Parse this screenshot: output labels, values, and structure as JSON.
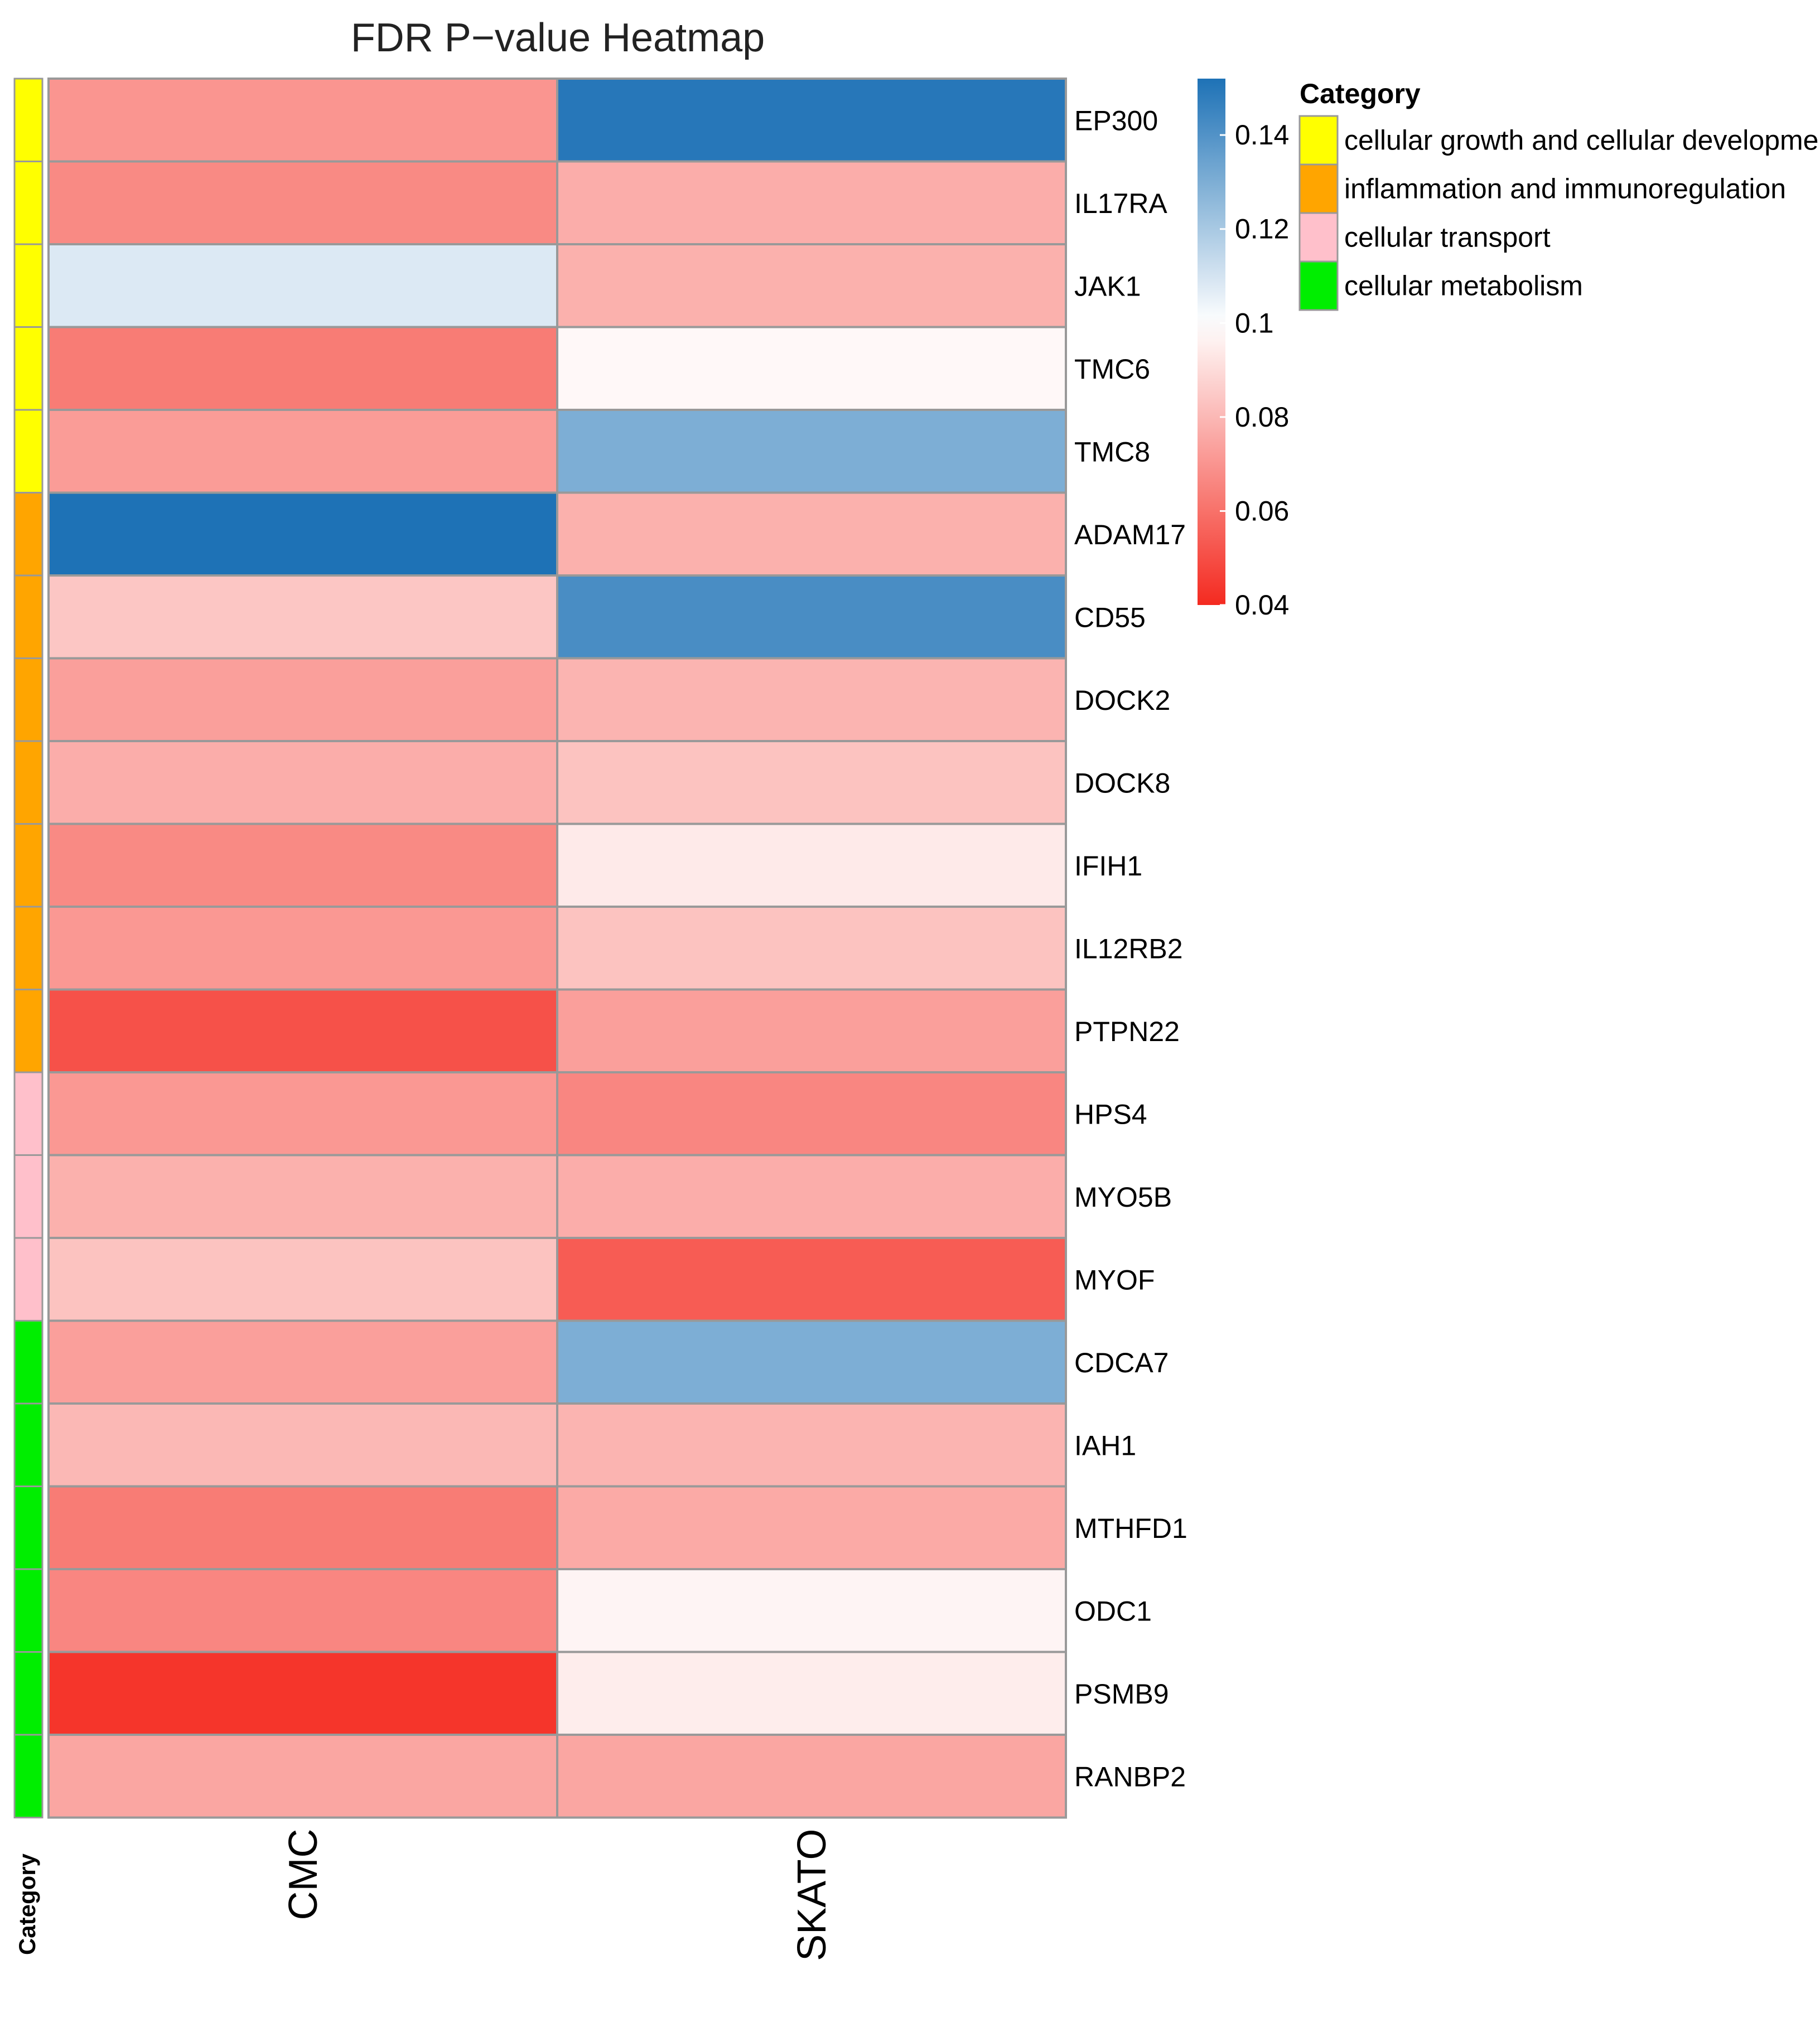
{
  "chart_data": {
    "type": "heatmap",
    "title": "FDR P−value Heatmap",
    "columns": [
      "CMC",
      "SKATO"
    ],
    "rows": [
      "EP300",
      "IL17RA",
      "JAK1",
      "TMC6",
      "TMC8",
      "ADAM17",
      "CD55",
      "DOCK2",
      "DOCK8",
      "IFIH1",
      "IL12RB2",
      "PTPN22",
      "HPS4",
      "MYO5B",
      "MYOF",
      "CDCA7",
      "IAH1",
      "MTHFD1",
      "ODC1",
      "PSMB9",
      "RANBP2"
    ],
    "values": [
      [
        0.07,
        0.15
      ],
      [
        0.067,
        0.077
      ],
      [
        0.108,
        0.078
      ],
      [
        0.063,
        0.098
      ],
      [
        0.072,
        0.13
      ],
      [
        0.152,
        0.078
      ],
      [
        0.084,
        0.142
      ],
      [
        0.073,
        0.079
      ],
      [
        0.077,
        0.083
      ],
      [
        0.067,
        0.094
      ],
      [
        0.071,
        0.083
      ],
      [
        0.051,
        0.073
      ],
      [
        0.071,
        0.066
      ],
      [
        0.078,
        0.077
      ],
      [
        0.083,
        0.054
      ],
      [
        0.073,
        0.13
      ],
      [
        0.08,
        0.079
      ],
      [
        0.063,
        0.076
      ],
      [
        0.066,
        0.097
      ],
      [
        0.043,
        0.095
      ],
      [
        0.075,
        0.075
      ]
    ],
    "row_categories": [
      "cellular growth and cellular development",
      "cellular growth and cellular development",
      "cellular growth and cellular development",
      "cellular growth and cellular development",
      "cellular growth and cellular development",
      "inflammation and immunoregulation",
      "inflammation and immunoregulation",
      "inflammation and immunoregulation",
      "inflammation and immunoregulation",
      "inflammation and immunoregulation",
      "inflammation and immunoregulation",
      "inflammation and immunoregulation",
      "cellular transport",
      "cellular transport",
      "cellular transport",
      "cellular metabolism",
      "cellular metabolism",
      "cellular metabolism",
      "cellular metabolism",
      "cellular metabolism",
      "cellular metabolism"
    ],
    "category_axis_label": "Category",
    "colorbar": {
      "range": [
        0.04,
        0.152
      ],
      "ticks": [
        0.04,
        0.06,
        0.08,
        0.1,
        0.12,
        0.14
      ],
      "tick_labels": [
        "0.04",
        "0.06",
        "0.08",
        "0.1",
        "0.12",
        "0.14"
      ],
      "colors": {
        "low": "#f42a20",
        "mid": "#ffffff",
        "high": "#1e72b6"
      },
      "mid_value": 0.1
    },
    "legend": {
      "title": "Category",
      "placement": "top-right",
      "items": [
        {
          "label": "cellular growth and cellular development",
          "color": "#ffff00"
        },
        {
          "label": "inflammation and immunoregulation",
          "color": "#ffa500"
        },
        {
          "label": "cellular transport",
          "color": "#ffc0cb"
        },
        {
          "label": "cellular metabolism",
          "color": "#00ee00"
        }
      ]
    },
    "grid_color": "#999999"
  }
}
